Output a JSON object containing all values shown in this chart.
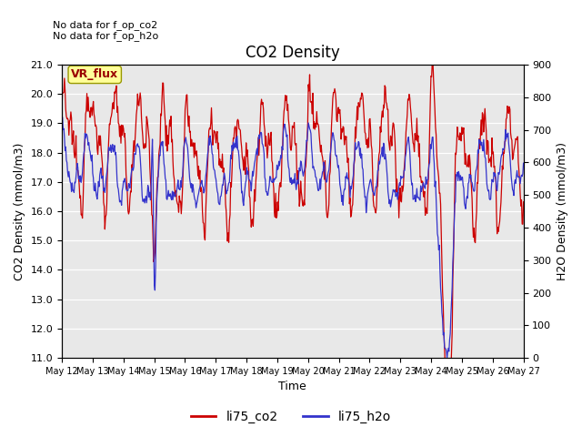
{
  "title": "CO2 Density",
  "xlabel": "Time",
  "ylabel_left": "CO2 Density (mmol/m3)",
  "ylabel_right": "H2O Density (mmol/m3)",
  "ylim_left": [
    11.0,
    21.0
  ],
  "ylim_right": [
    0,
    900
  ],
  "yticks_left": [
    11.0,
    12.0,
    13.0,
    14.0,
    15.0,
    16.0,
    17.0,
    18.0,
    19.0,
    20.0,
    21.0
  ],
  "yticks_right": [
    0,
    100,
    200,
    300,
    400,
    500,
    600,
    700,
    800,
    900
  ],
  "xtick_labels": [
    "May 12",
    "May 13",
    "May 14",
    "May 15",
    "May 16",
    "May 17",
    "May 18",
    "May 19",
    "May 20",
    "May 21",
    "May 22",
    "May 23",
    "May 24",
    "May 25",
    "May 26",
    "May 27"
  ],
  "note1": "No data for f_op_co2",
  "note2": "No data for f_op_h2o",
  "vr_flux_label": "VR_flux",
  "legend_labels": [
    "li75_co2",
    "li75_h2o"
  ],
  "line_colors": [
    "#cc0000",
    "#3333cc"
  ],
  "bg_color": "#e8e8e8",
  "fig_bg": "#ffffff",
  "line_width": 0.9,
  "title_fontsize": 12,
  "label_fontsize": 9,
  "tick_fontsize": 8,
  "note_fontsize": 8,
  "vr_box_color": "#ffff99",
  "vr_box_edge": "#999900",
  "vr_text_color": "#990000",
  "legend_fontsize": 10
}
